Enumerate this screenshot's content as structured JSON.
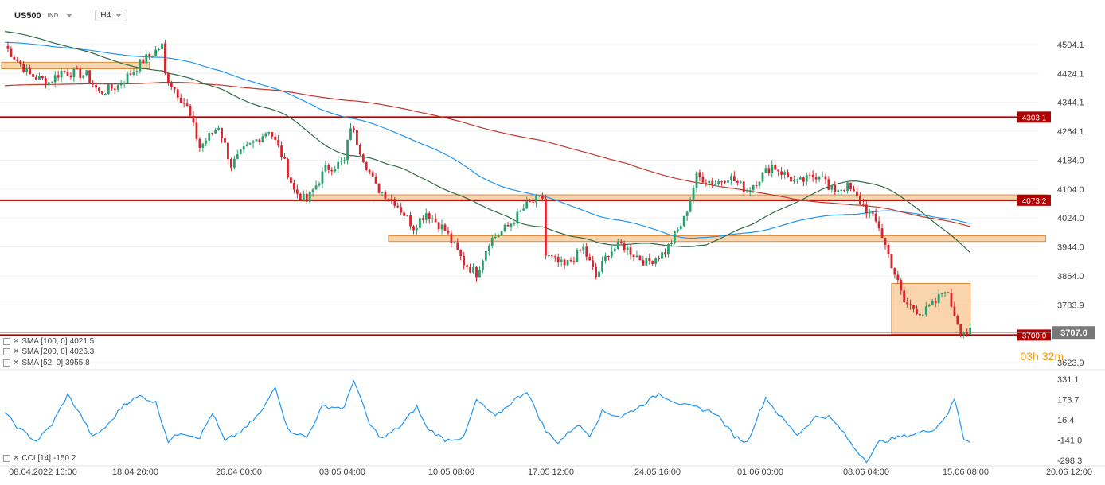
{
  "header": {
    "symbol": "US500",
    "market": "IND",
    "timeframe": "H4"
  },
  "indicators": [
    {
      "label": "SMA [100, 0]",
      "value": "4021.5",
      "color": "#2196f3"
    },
    {
      "label": "SMA [200, 0]",
      "value": "4026.3",
      "color": "#c0392b"
    },
    {
      "label": "SMA [52, 0]",
      "value": "3955.8",
      "color": "#2e6b44"
    }
  ],
  "cci": {
    "label": "CCI [14]",
    "value": "-150.2",
    "color": "#2196f3"
  },
  "timer": {
    "hours": "03h",
    "minutes": "32m"
  },
  "colors": {
    "up": "#2aa06c",
    "down": "#d9232d",
    "zone": "#f5b06a",
    "level": "#b00000"
  },
  "chart_data": {
    "type": "candlestick",
    "price_axis": {
      "ticks": [
        "4504.1",
        "4424.1",
        "4344.1",
        "4264.1",
        "4184.0",
        "4104.0",
        "4024.0",
        "3944.0",
        "3864.0",
        "3783.9",
        "3623.9"
      ],
      "range": [
        3600,
        4560
      ]
    },
    "cci_axis": {
      "ticks": [
        "331.1",
        "173.7",
        "16.4",
        "-141.0",
        "-298.3"
      ],
      "range": [
        -330,
        360
      ]
    },
    "x_ticks": [
      "08.04.2022 16:00",
      "18.04 20:00",
      "26.04 00:00",
      "03.05 04:00",
      "10.05 08:00",
      "17.05 12:00",
      "24.05 16:00",
      "01.06 00:00",
      "08.06 04:00",
      "15.06 08:00",
      "20.06 12:00"
    ],
    "levels": [
      {
        "price": 4303.1,
        "label": "4303.1"
      },
      {
        "price": 4073.2,
        "label": "4073.2"
      },
      {
        "price": 3700.0,
        "label": "3700.0"
      }
    ],
    "last_price": {
      "price": 3707.0,
      "label": "3707.0"
    },
    "zones": [
      {
        "from_bar": 0,
        "to_bar": 45,
        "low": 4437,
        "high": 4455
      },
      {
        "from_bar": 97,
        "to_bar": 330,
        "low": 4072,
        "high": 4088
      },
      {
        "from_bar": 123,
        "to_bar": 330,
        "low": 3959,
        "high": 3975
      },
      {
        "from_bar": 283,
        "to_bar": 306,
        "low": 3702,
        "high": 3843
      }
    ],
    "anchors": [
      [
        0,
        4500
      ],
      [
        8,
        4420
      ],
      [
        14,
        4400
      ],
      [
        18,
        4430
      ],
      [
        26,
        4420
      ],
      [
        30,
        4370
      ],
      [
        36,
        4390
      ],
      [
        44,
        4460
      ],
      [
        50,
        4500
      ],
      [
        51,
        4420
      ],
      [
        58,
        4330
      ],
      [
        62,
        4220
      ],
      [
        68,
        4280
      ],
      [
        72,
        4170
      ],
      [
        76,
        4210
      ],
      [
        84,
        4270
      ],
      [
        88,
        4200
      ],
      [
        92,
        4100
      ],
      [
        96,
        4070
      ],
      [
        102,
        4160
      ],
      [
        108,
        4180
      ],
      [
        110,
        4280
      ],
      [
        114,
        4190
      ],
      [
        118,
        4110
      ],
      [
        124,
        4070
      ],
      [
        130,
        4000
      ],
      [
        134,
        4040
      ],
      [
        140,
        3990
      ],
      [
        146,
        3900
      ],
      [
        150,
        3870
      ],
      [
        154,
        3960
      ],
      [
        160,
        4000
      ],
      [
        166,
        4060
      ],
      [
        171,
        4080
      ],
      [
        172,
        3920
      ],
      [
        178,
        3890
      ],
      [
        184,
        3940
      ],
      [
        188,
        3860
      ],
      [
        192,
        3930
      ],
      [
        196,
        3950
      ],
      [
        204,
        3900
      ],
      [
        210,
        3930
      ],
      [
        216,
        4020
      ],
      [
        220,
        4140
      ],
      [
        226,
        4120
      ],
      [
        230,
        4140
      ],
      [
        236,
        4100
      ],
      [
        244,
        4170
      ],
      [
        252,
        4120
      ],
      [
        260,
        4150
      ],
      [
        262,
        4100
      ],
      [
        268,
        4110
      ],
      [
        272,
        4070
      ],
      [
        278,
        4000
      ],
      [
        283,
        3870
      ],
      [
        286,
        3790
      ],
      [
        292,
        3760
      ],
      [
        296,
        3790
      ],
      [
        299,
        3830
      ],
      [
        302,
        3760
      ],
      [
        304,
        3715
      ],
      [
        306,
        3707
      ]
    ],
    "cci_anchors": [
      [
        0,
        70
      ],
      [
        4,
        -40
      ],
      [
        10,
        -150
      ],
      [
        15,
        -20
      ],
      [
        20,
        210
      ],
      [
        24,
        60
      ],
      [
        28,
        -120
      ],
      [
        33,
        -20
      ],
      [
        38,
        140
      ],
      [
        43,
        200
      ],
      [
        48,
        150
      ],
      [
        52,
        -150
      ],
      [
        56,
        -80
      ],
      [
        62,
        -120
      ],
      [
        66,
        70
      ],
      [
        70,
        -150
      ],
      [
        76,
        -60
      ],
      [
        82,
        90
      ],
      [
        86,
        280
      ],
      [
        90,
        -60
      ],
      [
        96,
        -120
      ],
      [
        101,
        120
      ],
      [
        108,
        110
      ],
      [
        111,
        330
      ],
      [
        116,
        -20
      ],
      [
        120,
        -130
      ],
      [
        126,
        -30
      ],
      [
        131,
        120
      ],
      [
        134,
        -40
      ],
      [
        140,
        -140
      ],
      [
        146,
        -120
      ],
      [
        150,
        170
      ],
      [
        156,
        40
      ],
      [
        162,
        170
      ],
      [
        166,
        240
      ],
      [
        172,
        -70
      ],
      [
        176,
        -160
      ],
      [
        182,
        -20
      ],
      [
        186,
        -100
      ],
      [
        190,
        80
      ],
      [
        196,
        40
      ],
      [
        202,
        120
      ],
      [
        208,
        220
      ],
      [
        212,
        170
      ],
      [
        216,
        130
      ],
      [
        220,
        110
      ],
      [
        226,
        70
      ],
      [
        232,
        -110
      ],
      [
        236,
        -160
      ],
      [
        242,
        190
      ],
      [
        246,
        60
      ],
      [
        252,
        -100
      ],
      [
        258,
        40
      ],
      [
        262,
        40
      ],
      [
        266,
        -60
      ],
      [
        270,
        -200
      ],
      [
        274,
        -300
      ],
      [
        278,
        -160
      ],
      [
        284,
        -120
      ],
      [
        290,
        -90
      ],
      [
        296,
        -50
      ],
      [
        300,
        70
      ],
      [
        302,
        180
      ],
      [
        305,
        -130
      ],
      [
        307,
        -150
      ]
    ]
  }
}
